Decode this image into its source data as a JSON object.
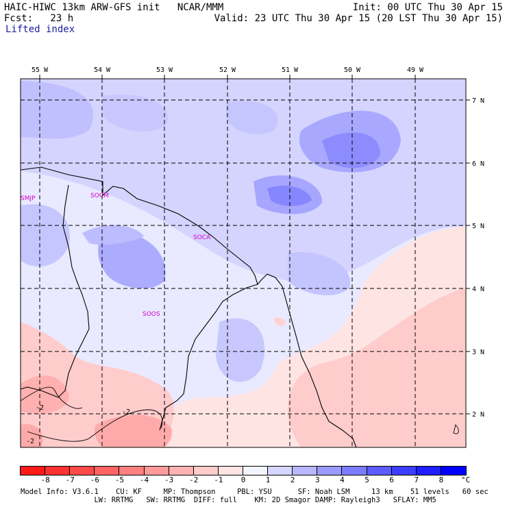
{
  "header": {
    "line1_left": "HAIC-HIWC 13km ARW-GFS init   NCAR/MMM",
    "line1_right": "Init: 00 UTC Thu 30 Apr 15",
    "line2_left": "Fcst:   23 h",
    "line2_right": "Valid: 23 UTC Thu 30 Apr 15 (20 LST Thu 30 Apr 15)",
    "field": "Lifted index"
  },
  "axes": {
    "lon_labels": [
      "55 W",
      "54 W",
      "53 W",
      "52 W",
      "51 W",
      "50 W",
      "49 W"
    ],
    "lat_labels": [
      "7 N",
      "6 N",
      "5 N",
      "4 N",
      "3 N",
      "2 N"
    ]
  },
  "stations": [
    "SMJP",
    "SOCM",
    "SOCA",
    "SOOS"
  ],
  "contour_labels": [
    "-2",
    "-2",
    "-2"
  ],
  "colorbar": {
    "ticks": [
      "-8",
      "-7",
      "-6",
      "-5",
      "-4",
      "-3",
      "-2",
      "-1",
      "0",
      "1",
      "2",
      "3",
      "4",
      "5",
      "6",
      "7",
      "8"
    ],
    "unit": "°C",
    "colors": [
      "#ff1a1a",
      "#ff3030",
      "#ff4a4a",
      "#ff6464",
      "#ff8080",
      "#ff9a9a",
      "#ffb2b2",
      "#ffcccc",
      "#ffe4e4",
      "#f4f4ff",
      "#d6d6ff",
      "#b8b8ff",
      "#9a9aff",
      "#7b7bff",
      "#5c5cff",
      "#3d3dff",
      "#1e1eff",
      "#0000ff"
    ]
  },
  "footer": {
    "line1": "Model Info: V3.6.1    CU: KF     MP: Thompson     PBL: YSU      SF: Noah LSM     13 km    51 levels   60 sec",
    "line2": "                 LW: RRTMG   SW: RRTMG  DIFF: full    KM: 2D Smagor DAMP: Rayleigh3   SFLAY: MM5"
  }
}
